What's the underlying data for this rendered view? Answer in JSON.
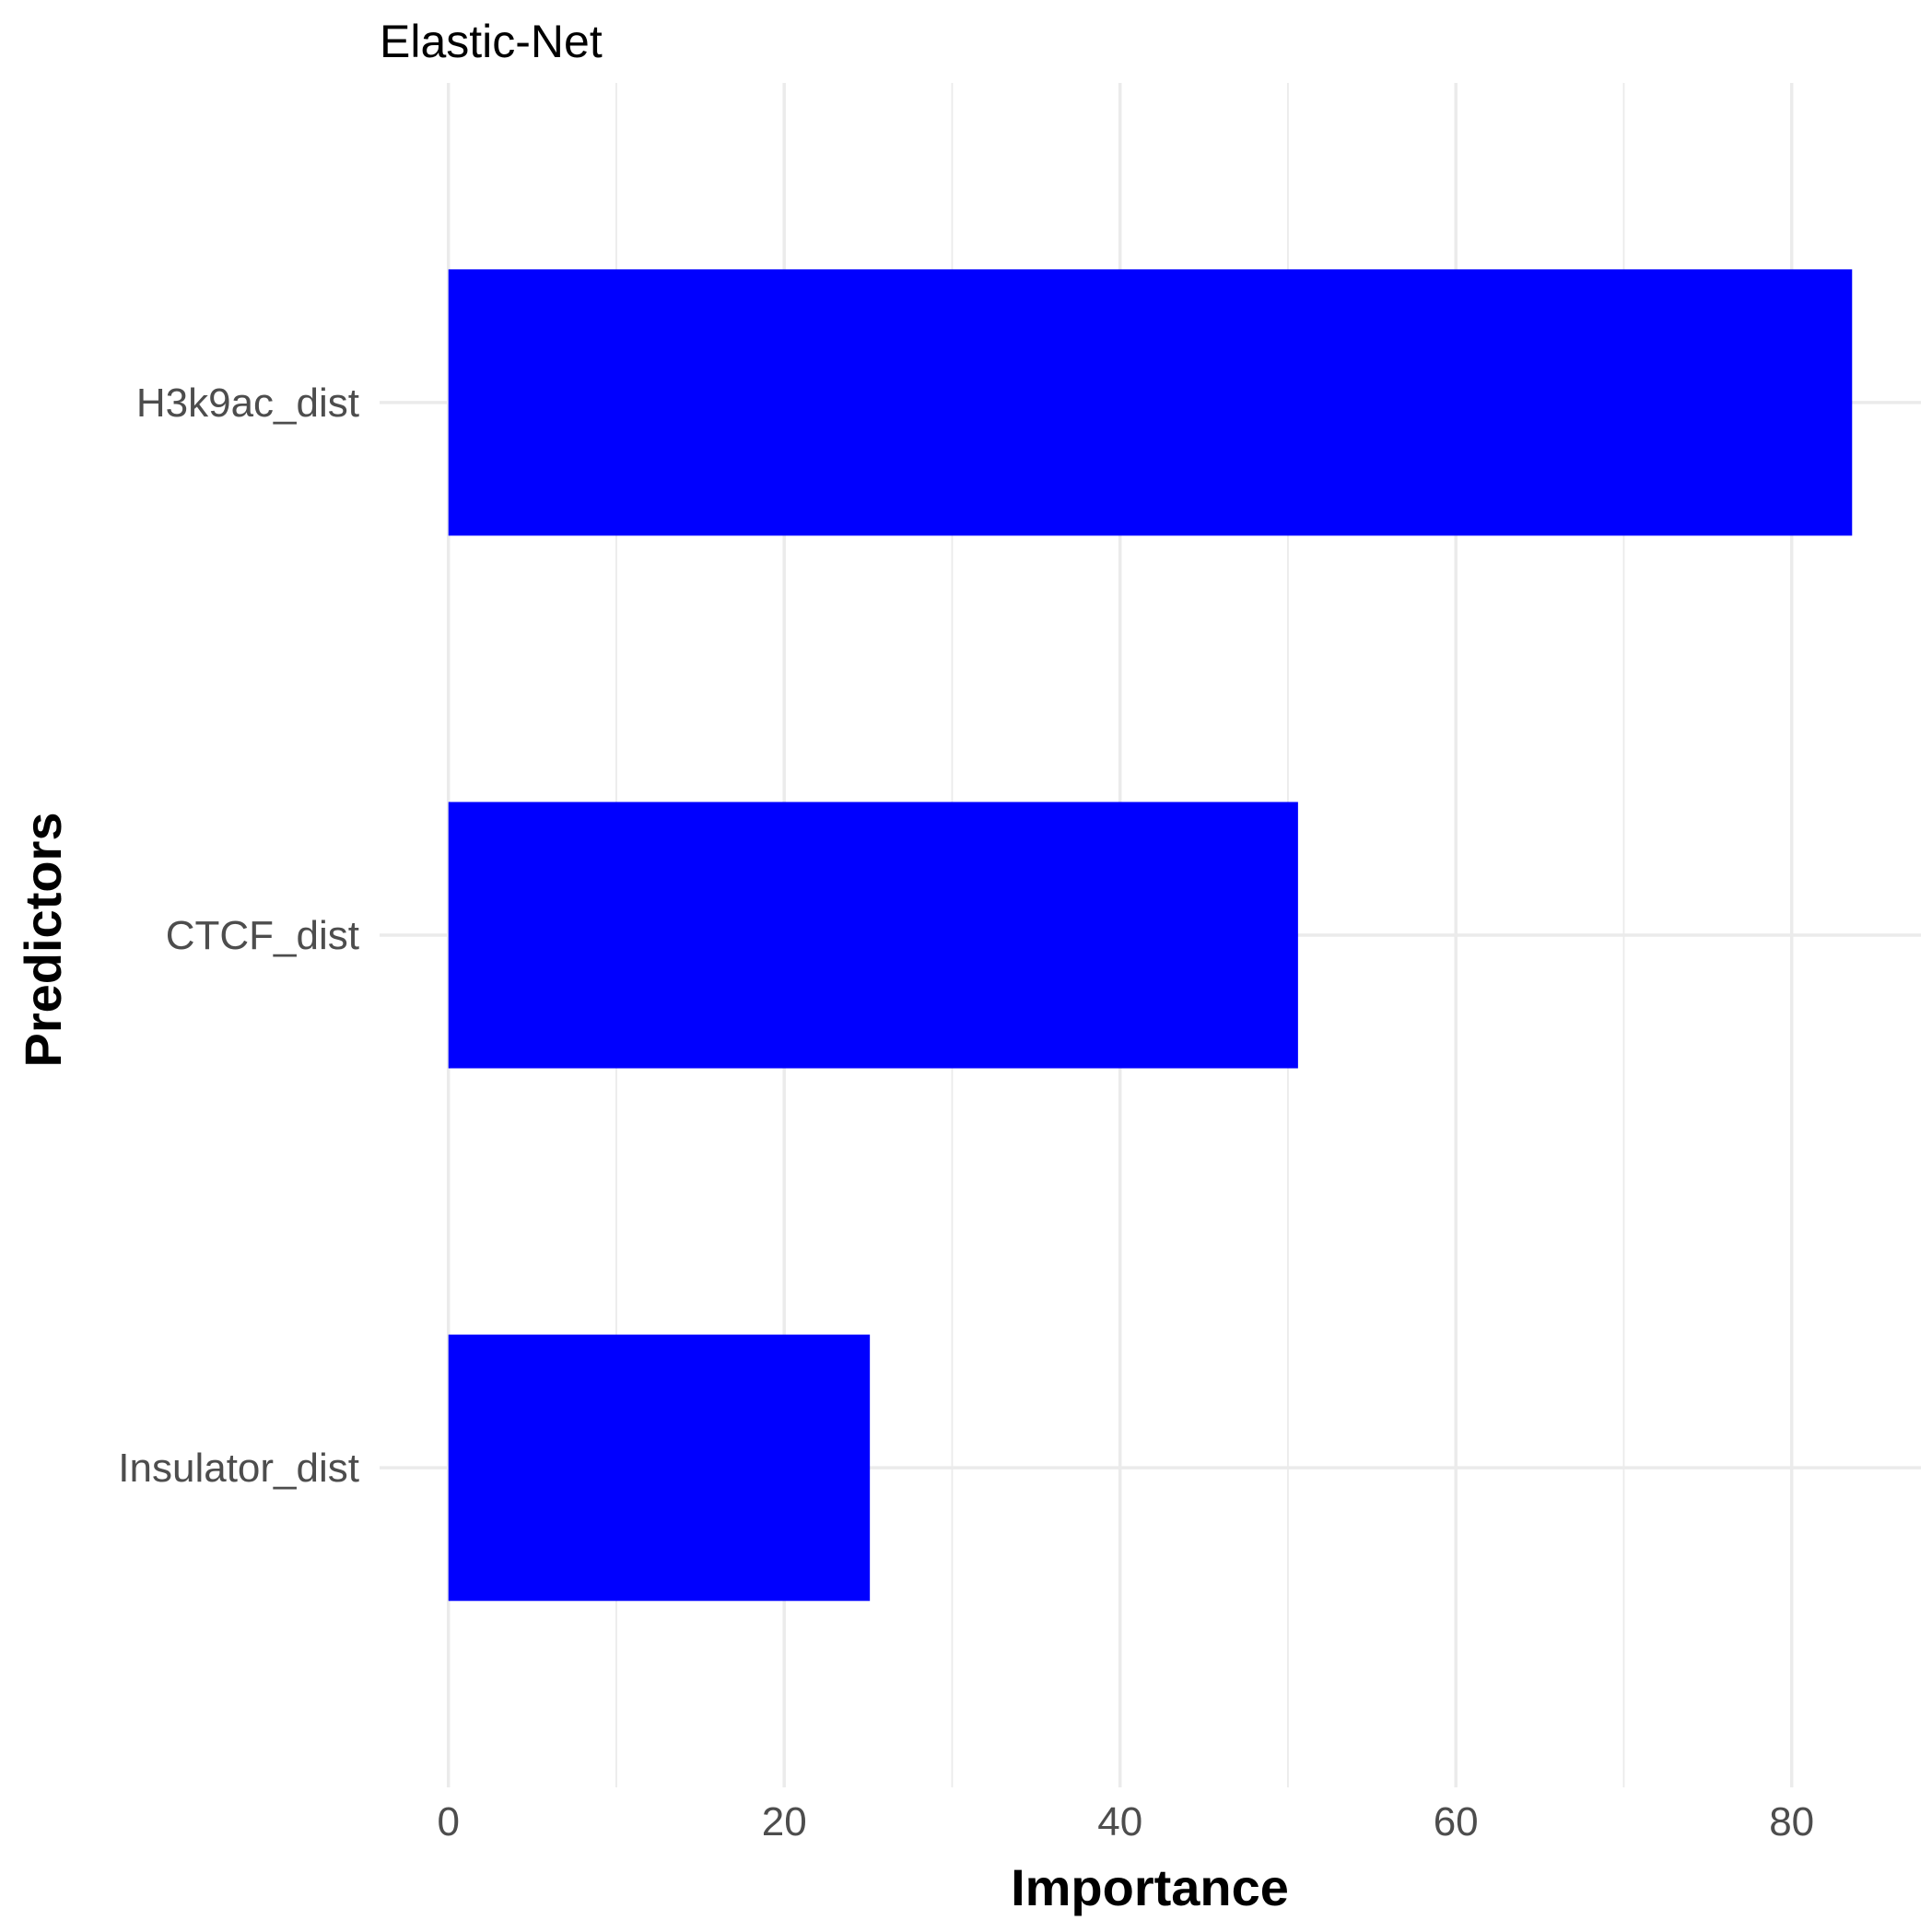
{
  "chart_data": {
    "type": "bar",
    "orientation": "horizontal",
    "title": "Elastic-Net",
    "xlabel": "Importance",
    "ylabel": "Predictors",
    "categories": [
      "Insulator_dist",
      "CTCF_dist",
      "H3k9ac_dist"
    ],
    "values": [
      25.1,
      50.6,
      83.6
    ],
    "xlim": [
      -4.1,
      87.7
    ],
    "xticks": [
      0,
      20,
      40,
      60,
      80
    ],
    "xtick_labels": [
      "0",
      "20",
      "40",
      "60",
      "80"
    ],
    "grid": true,
    "legend": "none",
    "bar_color": "#0000ff"
  }
}
